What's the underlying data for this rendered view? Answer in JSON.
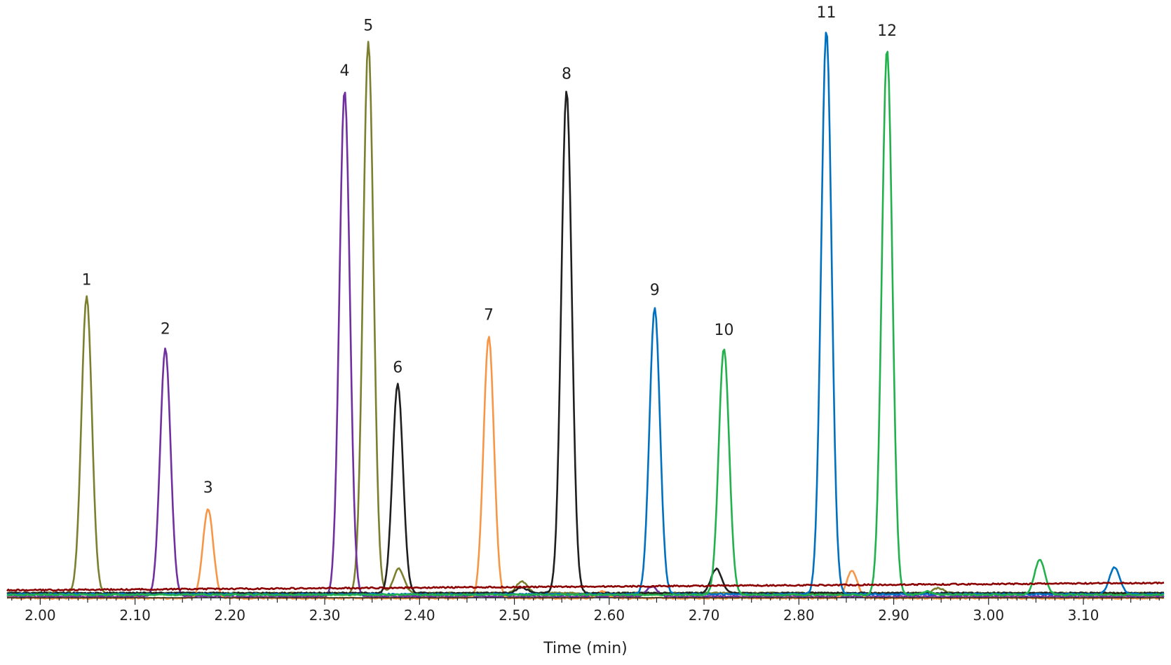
{
  "chart_data": {
    "type": "line",
    "title": "",
    "xlabel": "Time (min)",
    "ylabel": "",
    "xlim": [
      1.965,
      3.185
    ],
    "ylim": [
      0,
      100
    ],
    "x_ticks": [
      "2.00",
      "2.10",
      "2.20",
      "2.30",
      "2.40",
      "2.50",
      "2.60",
      "2.70",
      "2.80",
      "2.90",
      "3.00",
      "3.10"
    ],
    "x_tick_values": [
      2.0,
      2.1,
      2.2,
      2.3,
      2.4,
      2.5,
      2.6,
      2.7,
      2.8,
      2.9,
      3.0,
      3.1
    ],
    "grid": false,
    "legend": "none",
    "peaks": [
      {
        "label": "1",
        "time": 2.049,
        "height": 52.6
      },
      {
        "label": "2",
        "time": 2.132,
        "height": 43.9
      },
      {
        "label": "3",
        "time": 2.177,
        "height": 15.8
      },
      {
        "label": "4",
        "time": 2.321,
        "height": 89.7
      },
      {
        "label": "5",
        "time": 2.346,
        "height": 97.7
      },
      {
        "label": "6",
        "time": 2.377,
        "height": 37.1
      },
      {
        "label": "7",
        "time": 2.473,
        "height": 46.4
      },
      {
        "label": "8",
        "time": 2.555,
        "height": 89.1
      },
      {
        "label": "9",
        "time": 2.648,
        "height": 50.8
      },
      {
        "label": "10",
        "time": 2.721,
        "height": 43.7
      },
      {
        "label": "11",
        "time": 2.829,
        "height": 100.0
      },
      {
        "label": "12",
        "time": 2.893,
        "height": 96.8
      }
    ],
    "series": [
      {
        "color": "#7b7f2e",
        "baseline": 0.7,
        "width": 0.0055,
        "peaks": [
          [
            2.049,
            52.6
          ],
          [
            2.346,
            97.7
          ],
          [
            2.378,
            4.3
          ],
          [
            2.508,
            2.1
          ],
          [
            2.947,
            0.9
          ]
        ]
      },
      {
        "color": "#7030a0",
        "baseline": 0.1,
        "width": 0.0055,
        "peaks": [
          [
            2.132,
            43.9
          ],
          [
            2.321,
            89.7
          ],
          [
            2.645,
            1.8
          ]
        ]
      },
      {
        "color": "#f79646",
        "baseline": -0.2,
        "width": 0.0055,
        "peaks": [
          [
            2.177,
            15.8
          ],
          [
            2.473,
            46.4
          ],
          [
            2.593,
            1.2
          ],
          [
            2.856,
            4.9
          ]
        ]
      },
      {
        "color": "#1f1f1f",
        "baseline": 0.7,
        "width": 0.0055,
        "peaks": [
          [
            2.377,
            37.1
          ],
          [
            2.555,
            89.1
          ],
          [
            2.713,
            4.3
          ],
          [
            2.508,
            1.0
          ]
        ]
      },
      {
        "color": "#0070c0",
        "baseline": 0.5,
        "width": 0.0055,
        "peaks": [
          [
            2.648,
            50.8
          ],
          [
            2.829,
            100.0
          ],
          [
            3.133,
            4.8
          ]
        ]
      },
      {
        "color": "#22b14c",
        "baseline": 0.4,
        "width": 0.0055,
        "peaks": [
          [
            2.721,
            43.7
          ],
          [
            2.893,
            96.8
          ],
          [
            3.054,
            6.2
          ],
          [
            2.935,
            0.6
          ]
        ]
      },
      {
        "color": "#8b0000",
        "baseline": 1.2,
        "baseline_end": 2.5,
        "width": 0.0055,
        "peaks": []
      }
    ]
  }
}
